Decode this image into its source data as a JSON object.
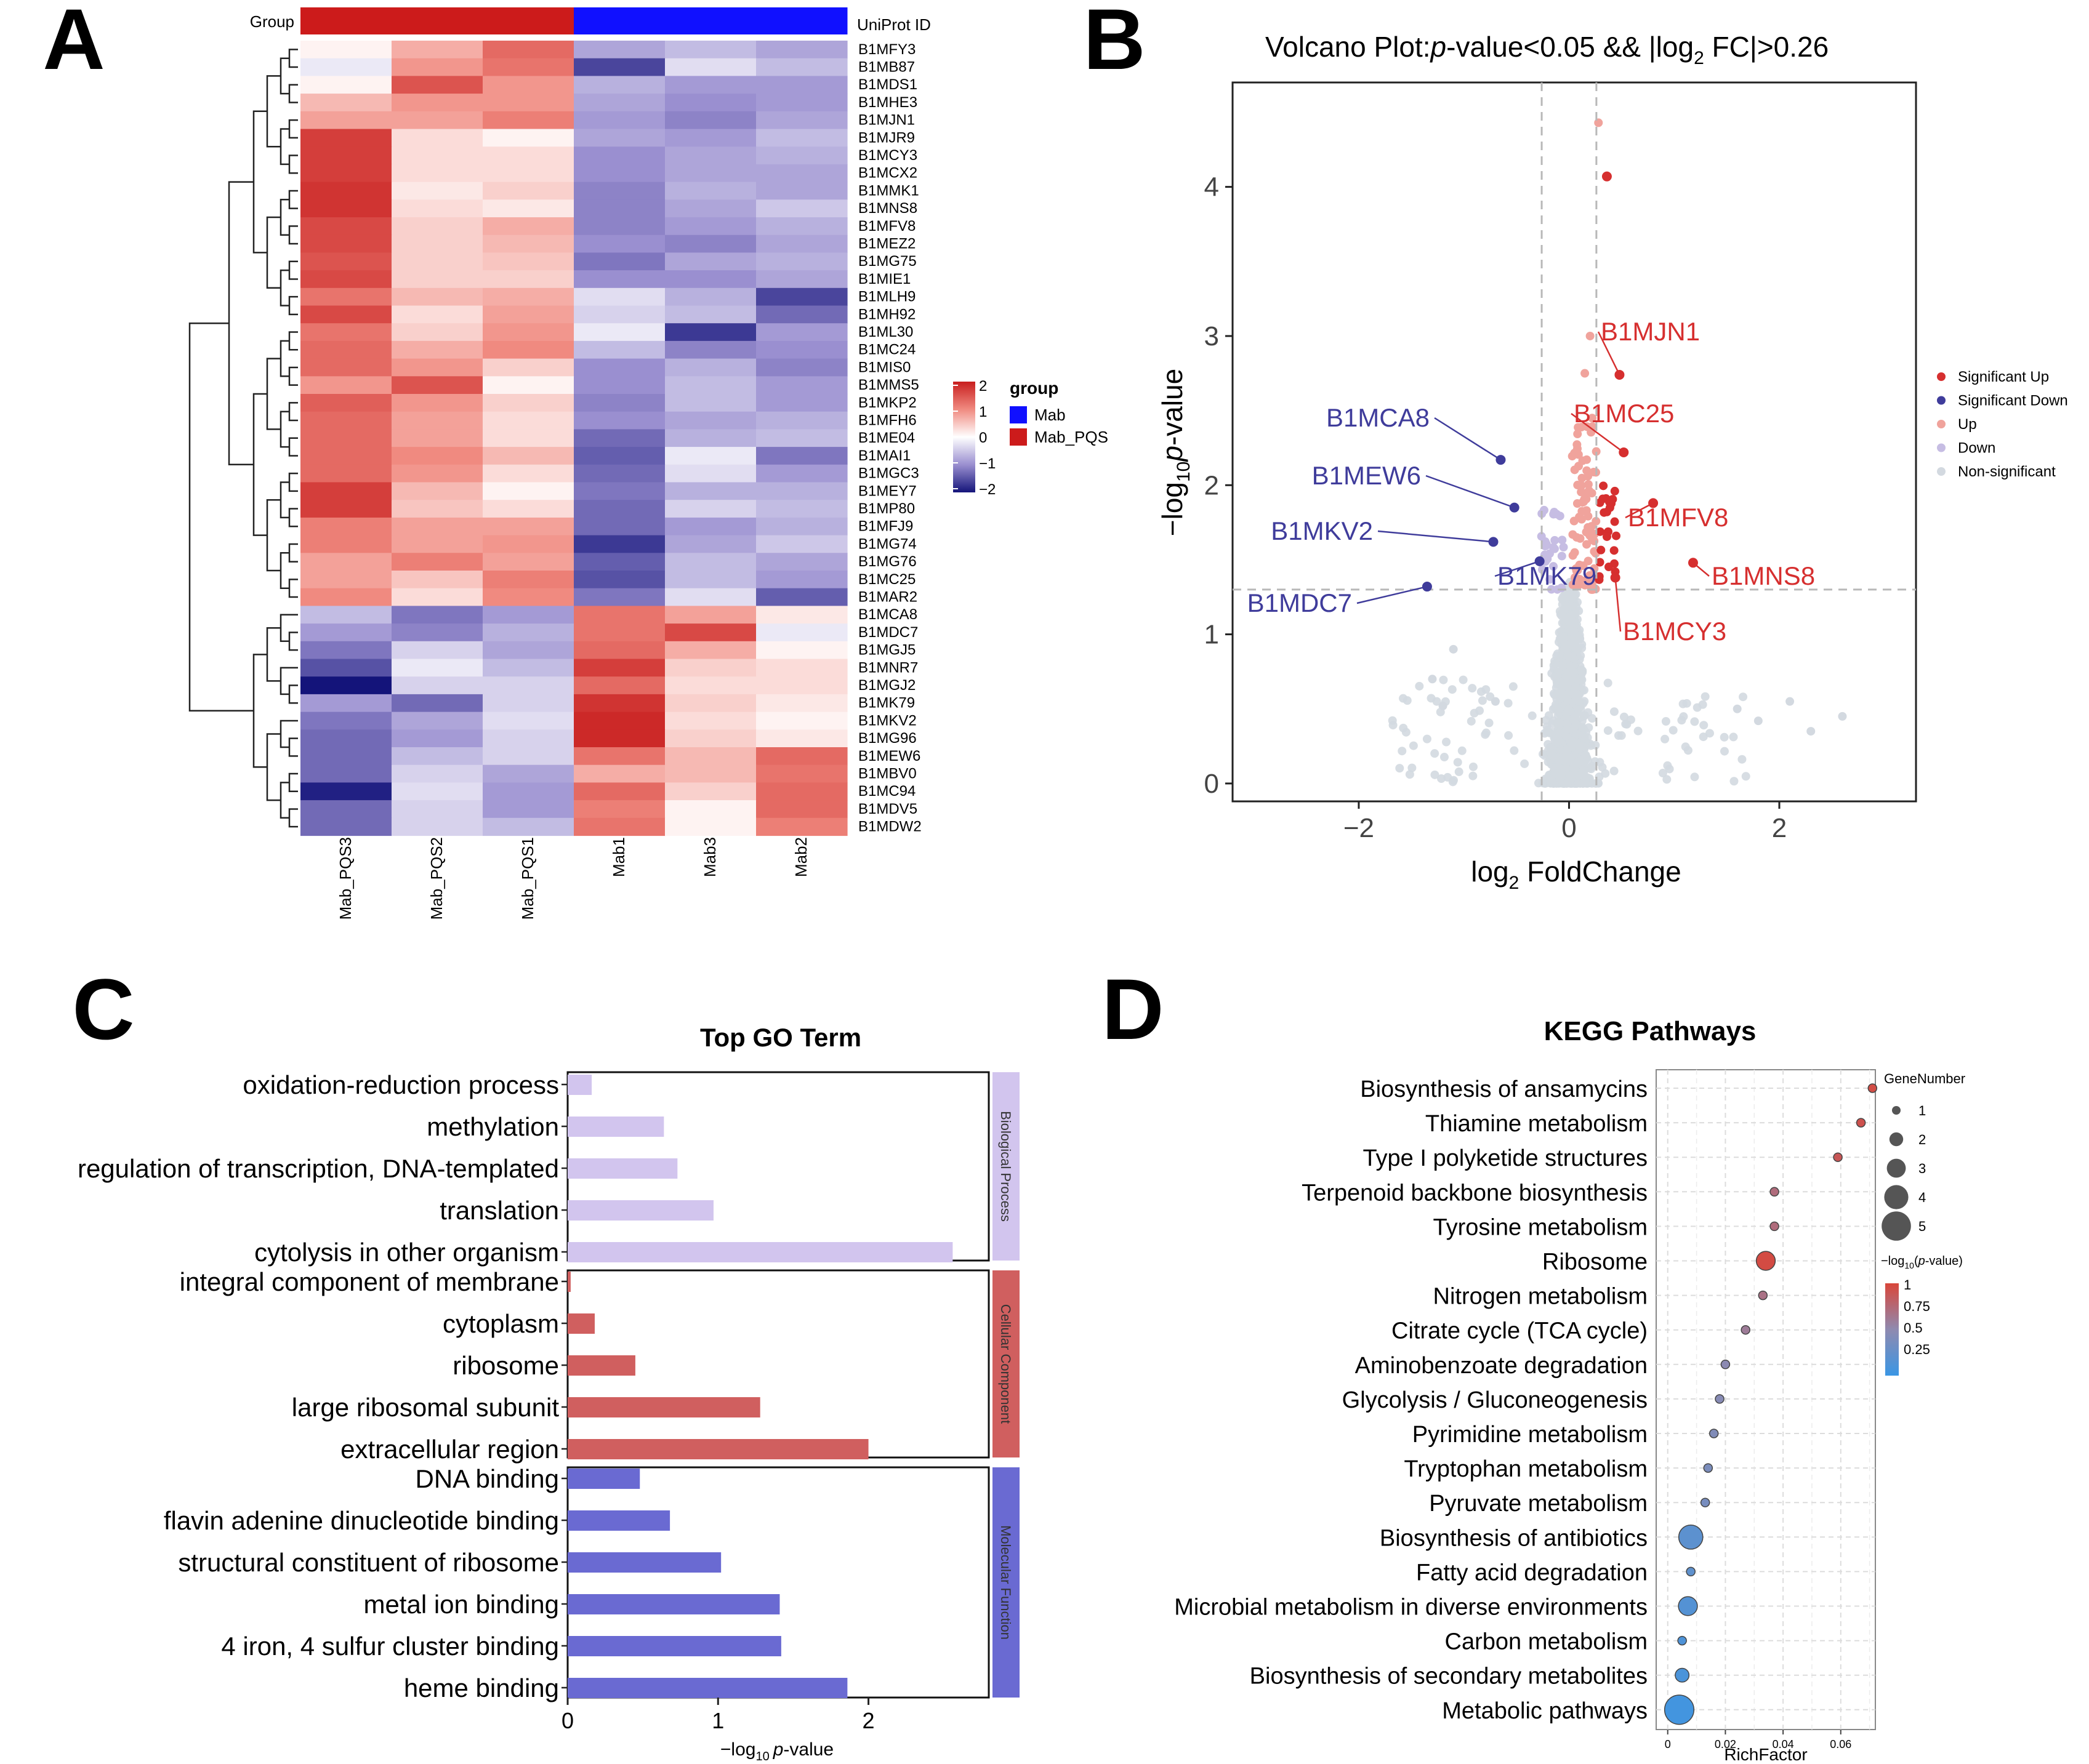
{
  "panels": {
    "A": "A",
    "B": "B",
    "C": "C",
    "D": "D"
  },
  "colors": {
    "red": "#cc1b1b",
    "blue": "#1010ff",
    "sigUp": "#d62f2f",
    "sigDown": "#3f3c9b",
    "up": "#f0a39c",
    "down": "#c6bde3",
    "nonsig": "#d3d9e0",
    "bp": "#d2c5ee",
    "cc": "#d05f5f",
    "mf": "#6a6ad2"
  },
  "chart_data": [
    {
      "type": "heatmap",
      "title": "",
      "group_label": "Group",
      "id_label": "UniProt ID",
      "columns": [
        "Mab_PQS3",
        "Mab_PQS2",
        "Mab_PQS1",
        "Mab1",
        "Mab3",
        "Mab2"
      ],
      "column_groups": [
        "Mab_PQS",
        "Mab_PQS",
        "Mab_PQS",
        "Mab",
        "Mab",
        "Mab"
      ],
      "rows": [
        "B1MFY3",
        "B1MB87",
        "B1MDS1",
        "B1MHE3",
        "B1MJN1",
        "B1MJR9",
        "B1MCY3",
        "B1MCX2",
        "B1MMK1",
        "B1MNS8",
        "B1MFV8",
        "B1MEZ2",
        "B1MG75",
        "B1MIE1",
        "B1MLH9",
        "B1MH92",
        "B1ML30",
        "B1MC24",
        "B1MIS0",
        "B1MMS5",
        "B1MKP2",
        "B1MFH6",
        "B1ME04",
        "B1MAI1",
        "B1MGC3",
        "B1MEY7",
        "B1MP80",
        "B1MFJ9",
        "B1MG74",
        "B1MG76",
        "B1MC25",
        "B1MAR2",
        "B1MCA8",
        "B1MDC7",
        "B1MGJ5",
        "B1MNR7",
        "B1MGJ2",
        "B1MK79",
        "B1MKV2",
        "B1MG96",
        "B1MEW6",
        "B1MBV0",
        "B1MC94",
        "B1MDV5",
        "B1MDW2"
      ],
      "values": [
        [
          0.1,
          0.7,
          1.3,
          -0.8,
          -0.6,
          -0.8
        ],
        [
          -0.2,
          0.9,
          1.2,
          -1.6,
          -0.3,
          -0.6
        ],
        [
          0.1,
          1.5,
          0.9,
          -0.7,
          -0.9,
          -0.9
        ],
        [
          0.6,
          0.9,
          0.9,
          -0.8,
          -1.0,
          -0.9
        ],
        [
          0.8,
          0.8,
          1.1,
          -0.9,
          -1.1,
          -0.8
        ],
        [
          1.7,
          0.3,
          0.1,
          -0.8,
          -0.9,
          -0.6
        ],
        [
          1.7,
          0.3,
          0.3,
          -1.0,
          -0.8,
          -0.7
        ],
        [
          1.7,
          0.3,
          0.3,
          -1.0,
          -0.8,
          -0.8
        ],
        [
          1.8,
          0.2,
          0.4,
          -1.1,
          -0.7,
          -0.8
        ],
        [
          1.8,
          0.3,
          0.2,
          -1.1,
          -0.8,
          -0.5
        ],
        [
          1.6,
          0.4,
          0.7,
          -1.1,
          -0.9,
          -0.7
        ],
        [
          1.6,
          0.4,
          0.6,
          -1.0,
          -1.1,
          -0.8
        ],
        [
          1.5,
          0.4,
          0.5,
          -1.2,
          -0.8,
          -0.7
        ],
        [
          1.6,
          0.4,
          0.4,
          -1.0,
          -1.0,
          -0.8
        ],
        [
          1.2,
          0.6,
          0.7,
          -0.3,
          -0.7,
          -1.6
        ],
        [
          1.6,
          0.3,
          0.8,
          -0.4,
          -0.6,
          -1.3
        ],
        [
          1.2,
          0.4,
          0.9,
          -0.2,
          -1.7,
          -0.9
        ],
        [
          1.3,
          0.7,
          1.0,
          -0.6,
          -1.1,
          -1.0
        ],
        [
          1.3,
          0.9,
          0.4,
          -1.0,
          -0.7,
          -1.1
        ],
        [
          0.9,
          1.5,
          0.1,
          -1.0,
          -0.6,
          -0.9
        ],
        [
          1.4,
          0.9,
          0.4,
          -1.1,
          -0.6,
          -0.9
        ],
        [
          1.3,
          0.8,
          0.3,
          -1.0,
          -0.8,
          -0.7
        ],
        [
          1.3,
          0.8,
          0.3,
          -1.3,
          -0.7,
          -0.6
        ],
        [
          1.3,
          1.0,
          0.6,
          -1.4,
          -0.2,
          -1.2
        ],
        [
          1.3,
          0.9,
          0.3,
          -1.3,
          -0.3,
          -0.9
        ],
        [
          1.7,
          0.6,
          0.1,
          -1.2,
          -0.7,
          -0.7
        ],
        [
          1.7,
          0.5,
          0.3,
          -1.3,
          -0.4,
          -0.6
        ],
        [
          1.1,
          0.8,
          0.8,
          -1.3,
          -0.9,
          -0.7
        ],
        [
          1.1,
          0.8,
          0.9,
          -1.7,
          -0.8,
          -0.5
        ],
        [
          0.8,
          1.1,
          0.8,
          -1.4,
          -0.6,
          -0.8
        ],
        [
          0.8,
          0.5,
          1.1,
          -1.5,
          -0.6,
          -0.9
        ],
        [
          1.0,
          0.3,
          1.0,
          -1.2,
          -0.3,
          -1.4
        ],
        [
          -0.6,
          -1.2,
          -0.9,
          1.2,
          0.8,
          0.2
        ],
        [
          -0.9,
          -1.1,
          -0.7,
          1.2,
          1.6,
          -0.2
        ],
        [
          -1.2,
          -0.4,
          -0.8,
          1.3,
          0.7,
          0.1
        ],
        [
          -1.5,
          -0.2,
          -0.6,
          1.7,
          0.4,
          0.3
        ],
        [
          -2.0,
          -0.4,
          -0.4,
          1.3,
          0.3,
          0.3
        ],
        [
          -0.9,
          -1.3,
          -0.4,
          1.8,
          0.4,
          0.2
        ],
        [
          -1.2,
          -0.8,
          -0.3,
          1.9,
          0.3,
          0.1
        ],
        [
          -1.3,
          -0.9,
          -0.4,
          1.9,
          0.4,
          0.2
        ],
        [
          -1.3,
          -0.6,
          -0.4,
          1.2,
          0.6,
          1.3
        ],
        [
          -1.3,
          -0.4,
          -0.8,
          0.7,
          0.6,
          1.2
        ],
        [
          -1.9,
          -0.3,
          -0.9,
          1.3,
          0.4,
          1.3
        ],
        [
          -1.3,
          -0.4,
          -0.9,
          1.1,
          0.1,
          1.3
        ],
        [
          -1.3,
          -0.4,
          -0.6,
          1.2,
          0.1,
          1.1
        ]
      ],
      "color_scale": {
        "ticks": [
          "2",
          "1",
          "0",
          "−1",
          "−2"
        ],
        "range": [
          -2,
          2
        ]
      },
      "legend": {
        "title": "group",
        "items": [
          "Mab",
          "Mab_PQS"
        ]
      }
    },
    {
      "type": "scatter",
      "title_prefix": "Volcano Plot:",
      "title_italic": "p",
      "title_mid": "-value<0.05 && |log",
      "title_sub": "2",
      "title_end": " FC|>0.26",
      "xlabel": "log",
      "xlabel_sub": "2",
      "xlabel_end": " FoldChange",
      "ylabel": "−log",
      "ylabel_sub": "10",
      "ylabel_italic": "p",
      "ylabel_end": "-value",
      "xlim": [
        -3.2,
        3.3
      ],
      "ylim": [
        -0.12,
        4.7
      ],
      "xticks": [
        "−2",
        "0",
        "2"
      ],
      "yticks": [
        "0",
        "1",
        "2",
        "3",
        "4"
      ],
      "thresholds": {
        "x": [
          -0.26,
          0.26
        ],
        "y": 1.3
      },
      "legend": [
        "Significant Up",
        "Significant Down",
        "Up",
        "Down",
        "Non-significant"
      ],
      "labeled_points": [
        {
          "label": "B1MJN1",
          "x": 0.48,
          "y": 2.74,
          "class": "up"
        },
        {
          "label": "B1MC25",
          "x": 0.52,
          "y": 2.22,
          "class": "up"
        },
        {
          "label": "B1MFV8",
          "x": 0.8,
          "y": 1.88,
          "class": "up"
        },
        {
          "label": "B1MNS8",
          "x": 1.18,
          "y": 1.48,
          "class": "up"
        },
        {
          "label": "B1MCY3",
          "x": 0.44,
          "y": 1.38,
          "class": "up"
        },
        {
          "label": "B1MCA8",
          "x": -0.65,
          "y": 2.17,
          "class": "down"
        },
        {
          "label": "B1MEW6",
          "x": -0.52,
          "y": 1.85,
          "class": "down"
        },
        {
          "label": "B1MKV2",
          "x": -0.72,
          "y": 1.62,
          "class": "down"
        },
        {
          "label": "B1MK79",
          "x": -0.28,
          "y": 1.49,
          "class": "down"
        },
        {
          "label": "B1MDC7",
          "x": -1.35,
          "y": 1.32,
          "class": "down"
        }
      ],
      "extra_points": [
        {
          "x": 0.36,
          "y": 4.07,
          "class": "sig_up"
        },
        {
          "x": 0.28,
          "y": 4.43,
          "class": "up_light"
        }
      ]
    },
    {
      "type": "bar",
      "title": "Top GO Term",
      "xlabel": "−log",
      "xlabel_sub": "10",
      "xlabel_italic": "p",
      "xlabel_end": "-value",
      "xlim": [
        0,
        2.8
      ],
      "xticks": [
        "0",
        "1",
        "2"
      ],
      "categories": [
        {
          "name": "Biological Process",
          "terms": [
            {
              "label": "oxidation-reduction process",
              "value": 0.16
            },
            {
              "label": "methylation",
              "value": 0.64
            },
            {
              "label": "regulation of transcription, DNA-templated",
              "value": 0.73
            },
            {
              "label": "translation",
              "value": 0.97
            },
            {
              "label": "cytolysis in other organism",
              "value": 2.56
            }
          ]
        },
        {
          "name": "Cellular Component",
          "terms": [
            {
              "label": "integral component of membrane",
              "value": 0.02
            },
            {
              "label": "cytoplasm",
              "value": 0.18
            },
            {
              "label": "ribosome",
              "value": 0.45
            },
            {
              "label": "large ribosomal subunit",
              "value": 1.28
            },
            {
              "label": "extracellular region",
              "value": 2.0
            }
          ]
        },
        {
          "name": "Molecular Function",
          "terms": [
            {
              "label": "DNA binding",
              "value": 0.48
            },
            {
              "label": "flavin adenine dinucleotide binding",
              "value": 0.68
            },
            {
              "label": "structural constituent of ribosome",
              "value": 1.02
            },
            {
              "label": "metal ion binding",
              "value": 1.41
            },
            {
              "label": "4 iron, 4 sulfur cluster binding",
              "value": 1.42
            },
            {
              "label": "heme binding",
              "value": 1.86
            }
          ]
        }
      ]
    },
    {
      "type": "scatter",
      "title": "KEGG Pathways",
      "xlabel": "RichFactor",
      "xlim": [
        -0.004,
        0.072
      ],
      "xticks": [
        "0",
        "0.02",
        "0.04",
        "0.06"
      ],
      "size_legend_title": "GeneNumber",
      "size_legend": [
        "1",
        "2",
        "3",
        "4",
        "5"
      ],
      "color_legend_title_pre": "−log",
      "color_legend_title_sub": "10",
      "color_legend_title_italic": "p",
      "color_legend_title_end": "-value)",
      "color_legend_title_open": "(",
      "color_legend_ticks": [
        "1",
        "0.75",
        "0.5",
        "0.25"
      ],
      "pathways": [
        {
          "name": "Biosynthesis of ansamycins",
          "rich": 0.071,
          "genes": 1,
          "p": 0.95
        },
        {
          "name": "Thiamine metabolism",
          "rich": 0.067,
          "genes": 1,
          "p": 0.92
        },
        {
          "name": "Type I polyketide structures",
          "rich": 0.059,
          "genes": 1,
          "p": 0.88
        },
        {
          "name": "Terpenoid backbone biosynthesis",
          "rich": 0.037,
          "genes": 1,
          "p": 0.72
        },
        {
          "name": "Tyrosine metabolism",
          "rich": 0.037,
          "genes": 1,
          "p": 0.72
        },
        {
          "name": "Ribosome",
          "rich": 0.034,
          "genes": 3,
          "p": 0.96
        },
        {
          "name": "Nitrogen metabolism",
          "rich": 0.033,
          "genes": 1,
          "p": 0.68
        },
        {
          "name": "Citrate cycle (TCA cycle)",
          "rich": 0.027,
          "genes": 1,
          "p": 0.6
        },
        {
          "name": "Aminobenzoate degradation",
          "rich": 0.02,
          "genes": 1,
          "p": 0.48
        },
        {
          "name": "Glycolysis / Gluconeogenesis",
          "rich": 0.018,
          "genes": 1,
          "p": 0.45
        },
        {
          "name": "Pyrimidine metabolism",
          "rich": 0.016,
          "genes": 1,
          "p": 0.42
        },
        {
          "name": "Tryptophan metabolism",
          "rich": 0.014,
          "genes": 1,
          "p": 0.38
        },
        {
          "name": "Pyruvate metabolism",
          "rich": 0.013,
          "genes": 1,
          "p": 0.36
        },
        {
          "name": "Biosynthesis of antibiotics",
          "rich": 0.008,
          "genes": 4,
          "p": 0.2
        },
        {
          "name": "Fatty acid degradation",
          "rich": 0.008,
          "genes": 1,
          "p": 0.22
        },
        {
          "name": "Microbial metabolism in diverse environments",
          "rich": 0.007,
          "genes": 3,
          "p": 0.15
        },
        {
          "name": "Carbon metabolism",
          "rich": 0.005,
          "genes": 1,
          "p": 0.12
        },
        {
          "name": "Biosynthesis of secondary metabolites",
          "rich": 0.005,
          "genes": 2,
          "p": 0.1
        },
        {
          "name": "Metabolic pathways",
          "rich": 0.004,
          "genes": 5,
          "p": 0.05
        }
      ]
    }
  ]
}
